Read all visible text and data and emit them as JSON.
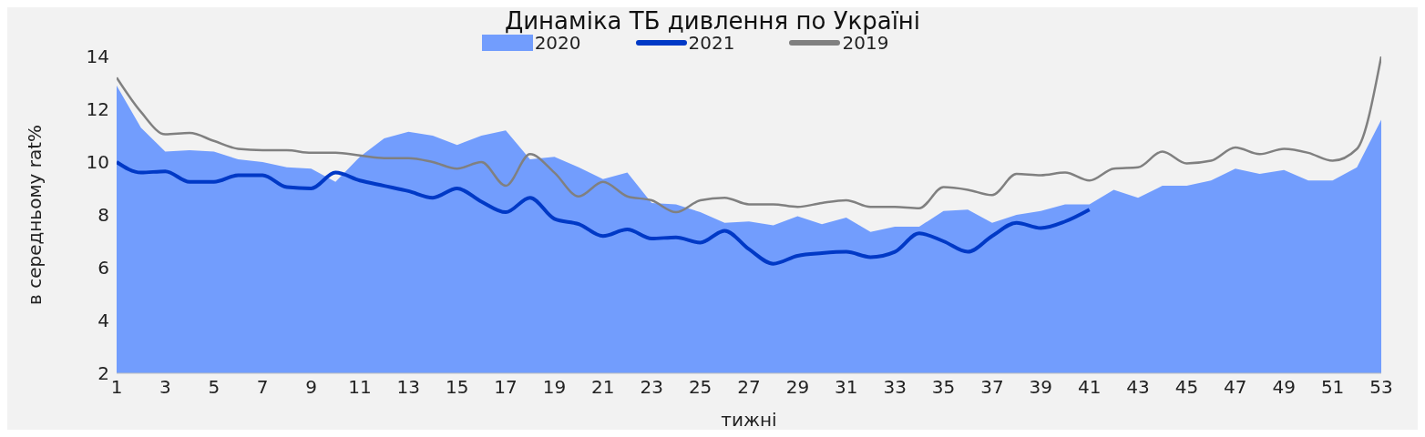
{
  "chart_data": {
    "type": "line",
    "title": "Динаміка ТБ дивлення по Україні",
    "xlabel": "тижні",
    "ylabel": "в середньому rat%",
    "x": [
      1,
      2,
      3,
      4,
      5,
      6,
      7,
      8,
      9,
      10,
      11,
      12,
      13,
      14,
      15,
      16,
      17,
      18,
      19,
      20,
      21,
      22,
      23,
      24,
      25,
      26,
      27,
      28,
      29,
      30,
      31,
      32,
      33,
      34,
      35,
      36,
      37,
      38,
      39,
      40,
      41,
      42,
      43,
      44,
      45,
      46,
      47,
      48,
      49,
      50,
      51,
      52,
      53
    ],
    "xlim": [
      1,
      53
    ],
    "xticks": [
      1,
      3,
      5,
      7,
      9,
      11,
      13,
      15,
      17,
      19,
      21,
      23,
      25,
      27,
      29,
      31,
      33,
      35,
      37,
      39,
      41,
      43,
      45,
      47,
      49,
      51,
      53
    ],
    "series": [
      {
        "name": "2020",
        "type": "area",
        "color": "#729dfd",
        "values": [
          12.9,
          11.3,
          10.4,
          10.45,
          10.4,
          10.1,
          10.0,
          9.8,
          9.75,
          9.25,
          10.2,
          10.9,
          11.15,
          11.0,
          10.65,
          11.0,
          11.2,
          10.1,
          10.2,
          9.8,
          9.35,
          9.6,
          8.45,
          8.4,
          8.1,
          7.7,
          7.75,
          7.6,
          7.95,
          7.65,
          7.9,
          7.35,
          7.55,
          7.55,
          8.15,
          8.2,
          7.7,
          8.0,
          8.15,
          8.4,
          8.4,
          8.95,
          8.65,
          9.1,
          9.1,
          9.3,
          9.75,
          9.55,
          9.7,
          9.3,
          9.3,
          9.8,
          11.6
        ]
      },
      {
        "name": "2021",
        "color": "#0039c6",
        "values": [
          10.0,
          9.6,
          9.65,
          9.25,
          9.25,
          9.5,
          9.5,
          9.05,
          9.0,
          9.6,
          9.3,
          9.1,
          8.9,
          8.65,
          9.0,
          8.5,
          8.1,
          8.65,
          7.85,
          7.65,
          7.2,
          7.45,
          7.1,
          7.15,
          6.95,
          7.4,
          6.7,
          6.15,
          6.45,
          6.55,
          6.6,
          6.4,
          6.6,
          7.3,
          7.0,
          6.6,
          7.2,
          7.7,
          7.5,
          7.75,
          8.2,
          null,
          null,
          null,
          null,
          null,
          null,
          null,
          null,
          null,
          null,
          null,
          null
        ]
      },
      {
        "name": "2019",
        "color": "#808080",
        "values": [
          13.2,
          11.9,
          11.05,
          11.1,
          10.8,
          10.5,
          10.45,
          10.45,
          10.35,
          10.35,
          10.25,
          10.15,
          10.15,
          10.0,
          9.75,
          10.0,
          9.1,
          10.3,
          9.6,
          8.7,
          9.25,
          8.7,
          8.55,
          8.1,
          8.55,
          8.65,
          8.4,
          8.4,
          8.3,
          8.45,
          8.55,
          8.3,
          8.3,
          8.25,
          9.05,
          8.95,
          8.75,
          9.55,
          9.5,
          9.6,
          9.3,
          9.75,
          9.8,
          10.4,
          9.95,
          10.05,
          10.55,
          10.3,
          10.5,
          10.35,
          10.05,
          10.5,
          14.0
        ]
      }
    ],
    "ylim": [
      2,
      14
    ],
    "yticks": [
      2,
      4,
      6,
      8,
      10,
      12,
      14
    ],
    "grid": false,
    "legend": "top"
  }
}
